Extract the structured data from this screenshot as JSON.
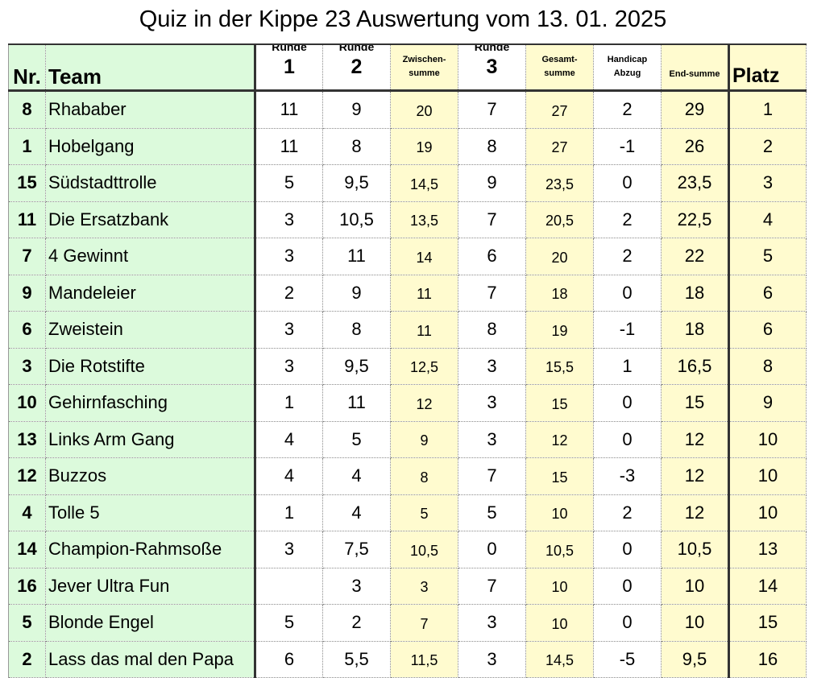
{
  "title": "Quiz in der Kippe 23 Auswertung vom 13. 01. 2025",
  "headers": {
    "nr": "Nr.",
    "team": "Team",
    "runde": "Runde",
    "r1": "1",
    "r2": "2",
    "zwischen_1": "Zwischen-",
    "zwischen_2": "summe",
    "r3": "3",
    "gesamt_1": "Gesamt-",
    "gesamt_2": "summe",
    "handicap_1": "Handicap",
    "handicap_2": "Abzug",
    "end": "End-summe",
    "platz": "Platz"
  },
  "rows": [
    {
      "nr": "8",
      "team": "Rhababer",
      "r1": "11",
      "r2": "9",
      "zw": "20",
      "r3": "7",
      "ges": "27",
      "hc": "2",
      "end": "29",
      "platz": "1"
    },
    {
      "nr": "1",
      "team": "Hobelgang",
      "r1": "11",
      "r2": "8",
      "zw": "19",
      "r3": "8",
      "ges": "27",
      "hc": "-1",
      "end": "26",
      "platz": "2"
    },
    {
      "nr": "15",
      "team": "Südstadttrolle",
      "r1": "5",
      "r2": "9,5",
      "zw": "14,5",
      "r3": "9",
      "ges": "23,5",
      "hc": "0",
      "end": "23,5",
      "platz": "3"
    },
    {
      "nr": "11",
      "team": "Die Ersatzbank",
      "r1": "3",
      "r2": "10,5",
      "zw": "13,5",
      "r3": "7",
      "ges": "20,5",
      "hc": "2",
      "end": "22,5",
      "platz": "4"
    },
    {
      "nr": "7",
      "team": "4 Gewinnt",
      "r1": "3",
      "r2": "11",
      "zw": "14",
      "r3": "6",
      "ges": "20",
      "hc": "2",
      "end": "22",
      "platz": "5"
    },
    {
      "nr": "9",
      "team": "Mandeleier",
      "r1": "2",
      "r2": "9",
      "zw": "11",
      "r3": "7",
      "ges": "18",
      "hc": "0",
      "end": "18",
      "platz": "6"
    },
    {
      "nr": "6",
      "team": "Zweistein",
      "r1": "3",
      "r2": "8",
      "zw": "11",
      "r3": "8",
      "ges": "19",
      "hc": "-1",
      "end": "18",
      "platz": "6"
    },
    {
      "nr": "3",
      "team": "Die Rotstifte",
      "r1": "3",
      "r2": "9,5",
      "zw": "12,5",
      "r3": "3",
      "ges": "15,5",
      "hc": "1",
      "end": "16,5",
      "platz": "8"
    },
    {
      "nr": "10",
      "team": "Gehirnfasching",
      "r1": "1",
      "r2": "11",
      "zw": "12",
      "r3": "3",
      "ges": "15",
      "hc": "0",
      "end": "15",
      "platz": "9"
    },
    {
      "nr": "13",
      "team": "Links Arm Gang",
      "r1": "4",
      "r2": "5",
      "zw": "9",
      "r3": "3",
      "ges": "12",
      "hc": "0",
      "end": "12",
      "platz": "10"
    },
    {
      "nr": "12",
      "team": "Buzzos",
      "r1": "4",
      "r2": "4",
      "zw": "8",
      "r3": "7",
      "ges": "15",
      "hc": "-3",
      "end": "12",
      "platz": "10"
    },
    {
      "nr": "4",
      "team": "Tolle 5",
      "r1": "1",
      "r2": "4",
      "zw": "5",
      "r3": "5",
      "ges": "10",
      "hc": "2",
      "end": "12",
      "platz": "10"
    },
    {
      "nr": "14",
      "team": "Champion-Rahmsoße",
      "r1": "3",
      "r2": "7,5",
      "zw": "10,5",
      "r3": "0",
      "ges": "10,5",
      "hc": "0",
      "end": "10,5",
      "platz": "13"
    },
    {
      "nr": "16",
      "team": "Jever Ultra Fun",
      "r1": "",
      "r2": "3",
      "zw": "3",
      "r3": "7",
      "ges": "10",
      "hc": "0",
      "end": "10",
      "platz": "14"
    },
    {
      "nr": "5",
      "team": "Blonde Engel",
      "r1": "5",
      "r2": "2",
      "zw": "7",
      "r3": "3",
      "ges": "10",
      "hc": "0",
      "end": "10",
      "platz": "15"
    },
    {
      "nr": "2",
      "team": "Lass das mal den Papa",
      "r1": "6",
      "r2": "5,5",
      "zw": "11,5",
      "r3": "3",
      "ges": "14,5",
      "hc": "-5",
      "end": "9,5",
      "platz": "16"
    }
  ]
}
